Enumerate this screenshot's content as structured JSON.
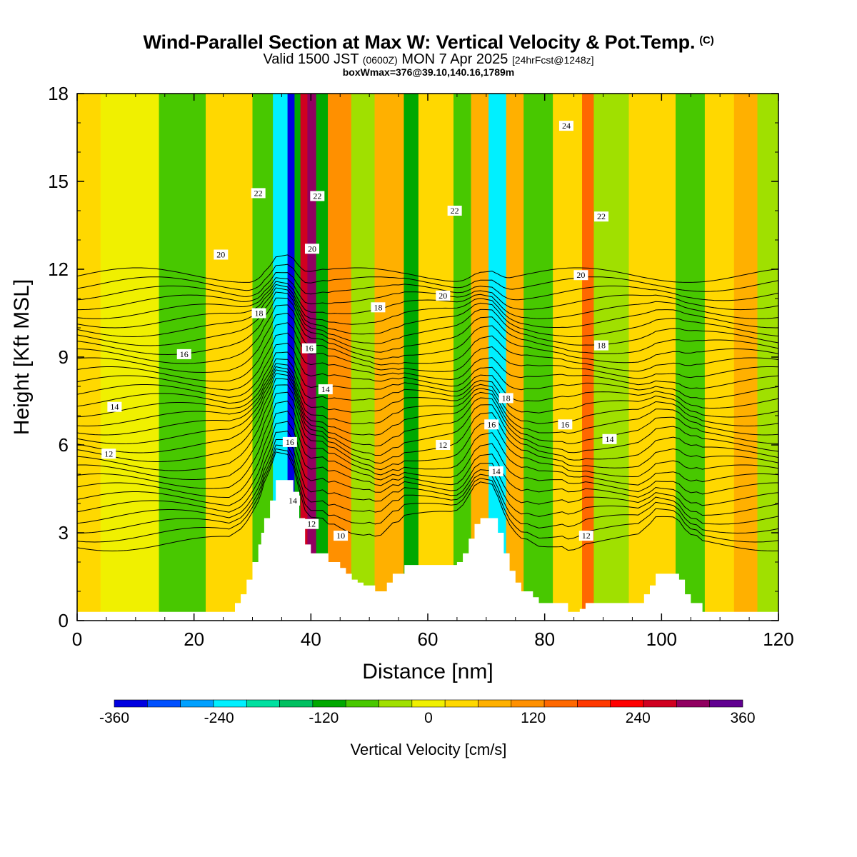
{
  "title": "Wind-Parallel Section at Max W: Vertical Velocity & Pot.Temp.",
  "title_mark": "(C)",
  "subtitle": {
    "valid": "Valid 1500 JST",
    "utc": "(0600Z)",
    "date": "MON 7 Apr 2025",
    "forecast": "[24hrFcst@1248z]"
  },
  "box_info": "boxWmax=376@39.10,140.16,1789m",
  "chart_data": {
    "type": "heatmap",
    "xlabel": "Distance [nm]",
    "ylabel": "Height [Kft MSL]",
    "xlim": [
      0,
      120
    ],
    "ylim": [
      0,
      18
    ],
    "x_ticks": [
      0,
      20,
      40,
      60,
      80,
      100,
      120
    ],
    "y_ticks": [
      0,
      3,
      6,
      9,
      12,
      15,
      18
    ],
    "colorbar": {
      "label": "Vertical Velocity [cm/s]",
      "range": [
        -360,
        360
      ],
      "tick_values": [
        -360,
        -240,
        -120,
        0,
        120,
        240,
        360
      ],
      "tick_labels": [
        "-360",
        "-240",
        "-120",
        "0",
        "120",
        "240",
        "360"
      ],
      "colors": [
        "#0000e0",
        "#0050ff",
        "#00a0ff",
        "#00f0ff",
        "#00e0a0",
        "#00c060",
        "#00a800",
        "#48c800",
        "#a0e000",
        "#f0f000",
        "#ffd800",
        "#ffb000",
        "#ff9000",
        "#ff6800",
        "#ff3800",
        "#ff0000",
        "#d00020",
        "#900060",
        "#600090"
      ]
    },
    "terrain": {
      "x": [
        0,
        26,
        27,
        28,
        29,
        30,
        31,
        31.5,
        32,
        33,
        34,
        35,
        36,
        37,
        38,
        39,
        40,
        41,
        42,
        43,
        44,
        45,
        46,
        47,
        48,
        49,
        50,
        51,
        52,
        53,
        54,
        55,
        56,
        57,
        58,
        59,
        60,
        61,
        62,
        63,
        64,
        65,
        66,
        67,
        68,
        69,
        70,
        71,
        72,
        73,
        74,
        75,
        76,
        77,
        78,
        79,
        80,
        81,
        82,
        83,
        84,
        85,
        86,
        87,
        88,
        89,
        90,
        91,
        92,
        93,
        94,
        95,
        96,
        97,
        98,
        99,
        100,
        101,
        102,
        103,
        104,
        105,
        106,
        107,
        108,
        109,
        110,
        120
      ],
      "height": [
        0.3,
        0.3,
        0.6,
        0.9,
        1.4,
        2.0,
        2.6,
        3.0,
        3.5,
        4.1,
        4.8,
        4.8,
        4.8,
        4.4,
        3.5,
        2.6,
        2.3,
        2.3,
        2.3,
        2.0,
        2.0,
        1.8,
        1.6,
        1.4,
        1.3,
        1.2,
        1.2,
        1.0,
        1.0,
        1.3,
        1.6,
        1.6,
        1.9,
        1.9,
        1.9,
        1.9,
        1.9,
        1.9,
        1.9,
        1.9,
        1.9,
        2.0,
        2.3,
        2.8,
        3.3,
        3.5,
        3.5,
        3.5,
        3.0,
        2.3,
        1.7,
        1.3,
        1.0,
        1.0,
        0.8,
        0.6,
        0.6,
        0.6,
        0.6,
        0.6,
        0.3,
        0.3,
        0.4,
        0.6,
        0.6,
        0.6,
        0.6,
        0.6,
        0.6,
        0.6,
        0.6,
        0.6,
        0.6,
        0.9,
        1.2,
        1.6,
        1.6,
        1.6,
        1.6,
        1.4,
        0.9,
        0.6,
        0.6,
        0.3,
        0.3,
        0.3,
        0.3,
        0.3
      ]
    },
    "velocity_bands": [
      {
        "x": 4,
        "w": 10,
        "value": 0
      },
      {
        "x": 14,
        "w": 8,
        "value": -60
      },
      {
        "x": 22,
        "w": 8,
        "value": 30
      },
      {
        "x": 30,
        "w": 3.5,
        "value": -60
      },
      {
        "x": 33.5,
        "w": 2.5,
        "value": -240
      },
      {
        "x": 36,
        "w": 1.2,
        "value": -340
      },
      {
        "x": 37.2,
        "w": 1.0,
        "value": -120
      },
      {
        "x": 38.2,
        "w": 1.2,
        "value": 260
      },
      {
        "x": 39.4,
        "w": 1.5,
        "value": 300
      },
      {
        "x": 40.9,
        "w": 2.0,
        "value": -120
      },
      {
        "x": 42.9,
        "w": 4,
        "value": 100
      },
      {
        "x": 46.9,
        "w": 4,
        "value": -30
      },
      {
        "x": 50.9,
        "w": 5,
        "value": 60
      },
      {
        "x": 55.9,
        "w": 2.5,
        "value": -120
      },
      {
        "x": 58.4,
        "w": 6,
        "value": 30
      },
      {
        "x": 64.4,
        "w": 3,
        "value": -60
      },
      {
        "x": 67.4,
        "w": 3,
        "value": 60
      },
      {
        "x": 70.4,
        "w": 3,
        "value": -240
      },
      {
        "x": 73.4,
        "w": 3,
        "value": 60
      },
      {
        "x": 76.4,
        "w": 5,
        "value": -60
      },
      {
        "x": 81.4,
        "w": 5,
        "value": 30
      },
      {
        "x": 86.4,
        "w": 2,
        "value": 150
      },
      {
        "x": 88.4,
        "w": 6,
        "value": -40
      },
      {
        "x": 94.4,
        "w": 8,
        "value": 30
      },
      {
        "x": 102.4,
        "w": 5,
        "value": -60
      },
      {
        "x": 107.4,
        "w": 5,
        "value": 20
      },
      {
        "x": 112.4,
        "w": 4,
        "value": 60
      },
      {
        "x": 116.4,
        "w": 3.6,
        "value": -30
      }
    ],
    "contour_levels": [
      10,
      10.5,
      11,
      11.5,
      12,
      12.5,
      13,
      13.5,
      14,
      14.5,
      15,
      15.5,
      16,
      16.5,
      17,
      17.5,
      18,
      18.5,
      19,
      19.5,
      20,
      20.5,
      21,
      21.5,
      22,
      22.5,
      23,
      23.5,
      24,
      24.5,
      25
    ],
    "contour_labels": [
      {
        "text": "12",
        "x": 5.4,
        "y": 5.7
      },
      {
        "text": "14",
        "x": 6.4,
        "y": 7.3
      },
      {
        "text": "16",
        "x": 18.3,
        "y": 9.1
      },
      {
        "text": "18",
        "x": 31.1,
        "y": 10.5
      },
      {
        "text": "20",
        "x": 24.6,
        "y": 12.5
      },
      {
        "text": "22",
        "x": 31.0,
        "y": 14.6
      },
      {
        "text": "22",
        "x": 41.1,
        "y": 14.5
      },
      {
        "text": "20",
        "x": 40.2,
        "y": 12.7
      },
      {
        "text": "16",
        "x": 39.7,
        "y": 9.3
      },
      {
        "text": "14",
        "x": 42.5,
        "y": 7.9
      },
      {
        "text": "16",
        "x": 36.4,
        "y": 6.1
      },
      {
        "text": "14",
        "x": 36.9,
        "y": 4.1
      },
      {
        "text": "12",
        "x": 40.1,
        "y": 3.3
      },
      {
        "text": "10",
        "x": 45.1,
        "y": 2.9
      },
      {
        "text": "18",
        "x": 51.5,
        "y": 10.7
      },
      {
        "text": "20",
        "x": 62.6,
        "y": 11.1
      },
      {
        "text": "22",
        "x": 64.6,
        "y": 14.0
      },
      {
        "text": "12",
        "x": 62.6,
        "y": 6.0
      },
      {
        "text": "16",
        "x": 70.9,
        "y": 6.7
      },
      {
        "text": "18",
        "x": 73.4,
        "y": 7.6
      },
      {
        "text": "14",
        "x": 71.7,
        "y": 5.1
      },
      {
        "text": "24",
        "x": 83.7,
        "y": 16.9
      },
      {
        "text": "22",
        "x": 89.7,
        "y": 13.8
      },
      {
        "text": "20",
        "x": 86.2,
        "y": 11.8
      },
      {
        "text": "18",
        "x": 89.7,
        "y": 9.4
      },
      {
        "text": "16",
        "x": 83.5,
        "y": 6.7
      },
      {
        "text": "14",
        "x": 91.1,
        "y": 6.2
      },
      {
        "text": "12",
        "x": 87.1,
        "y": 2.9
      }
    ]
  }
}
